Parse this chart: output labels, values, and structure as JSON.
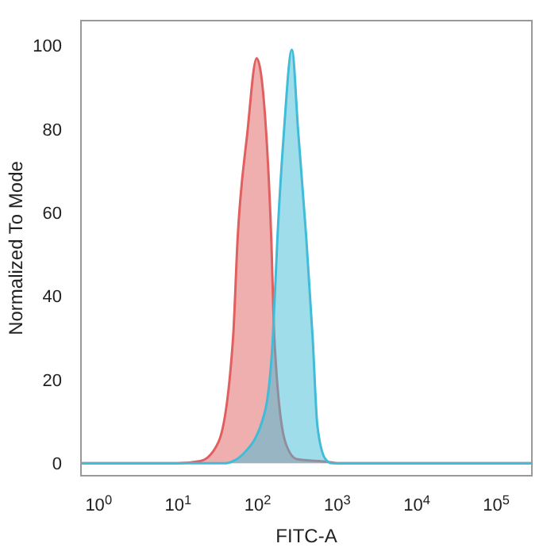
{
  "chart_data": {
    "type": "area",
    "xlabel": "FITC-A",
    "ylabel": "Normalized To Mode",
    "log": "x",
    "xlim": [
      0.6,
      280000
    ],
    "ylim": [
      -3,
      106
    ],
    "xticks": [
      {
        "value": 1,
        "label": "10$^{0}$"
      },
      {
        "value": 10,
        "label": "10$^{1}$"
      },
      {
        "value": 100,
        "label": "10$^{2}$"
      },
      {
        "value": 1000,
        "label": "10$^{3}$"
      },
      {
        "value": 10000,
        "label": "10$^{4}$"
      },
      {
        "value": 100000,
        "label": "10$^{5}$"
      }
    ],
    "yticks": [
      0,
      20,
      40,
      60,
      80,
      100
    ],
    "grid": false,
    "series": [
      {
        "color": "#e06060",
        "x": [
          0.6,
          10,
          19,
          32,
          49,
          56,
          74,
          97,
          128,
          148,
          162,
          223,
          309,
          780,
          1000,
          280000
        ],
        "values": [
          0,
          0,
          0.5,
          5,
          30,
          54,
          79,
          97,
          79,
          54,
          30,
          5,
          1,
          0.3,
          0,
          0
        ]
      },
      {
        "color": "#40bcd8",
        "x": [
          0.6,
          40,
          49,
          64,
          122,
          155,
          177,
          213,
          269,
          324,
          408,
          491,
          563,
          710,
          850,
          280000
        ],
        "values": [
          0,
          0,
          0.5,
          2,
          12,
          30,
          54,
          79,
          99,
          79,
          54,
          30,
          9,
          1,
          0,
          0
        ]
      }
    ]
  }
}
